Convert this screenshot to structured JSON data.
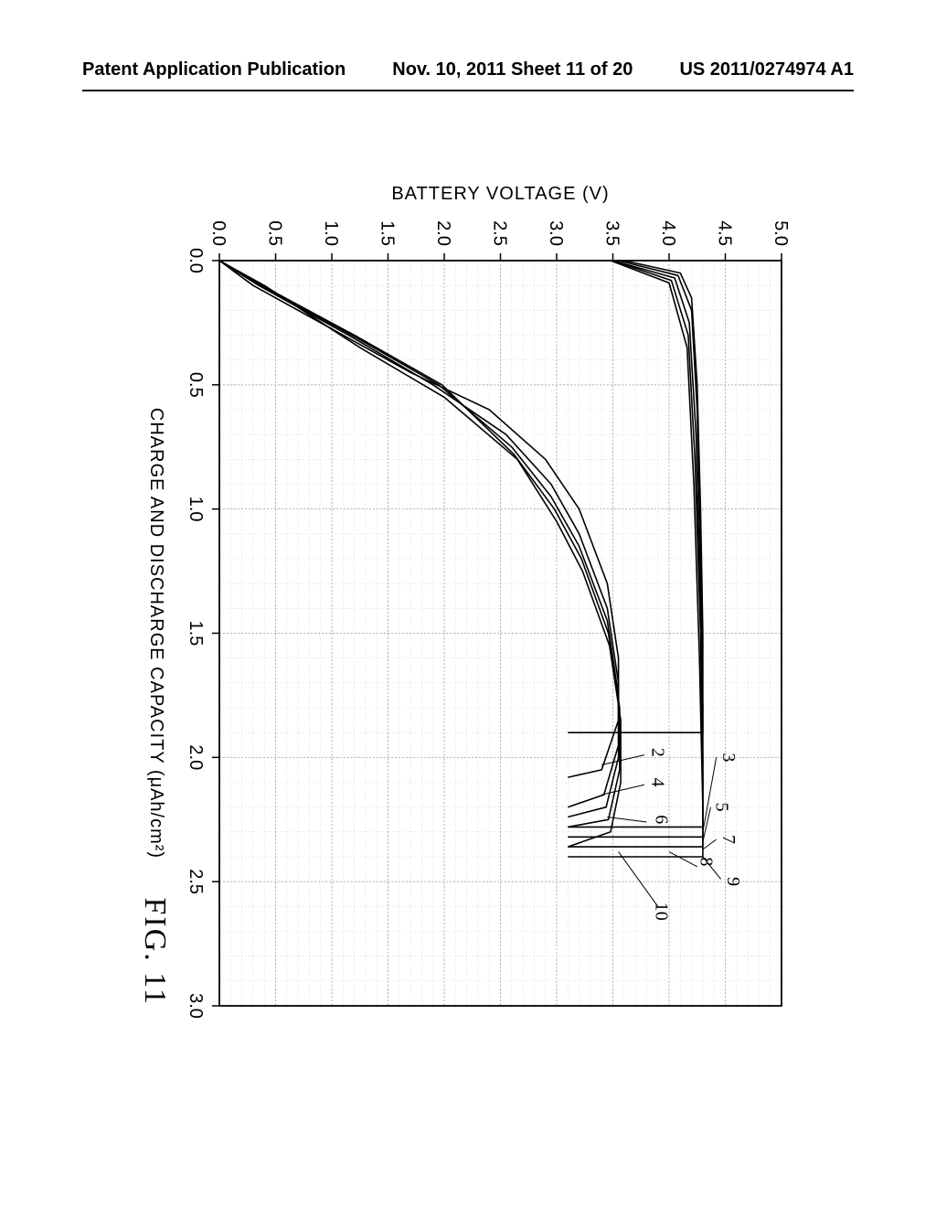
{
  "header": {
    "left": "Patent Application Publication",
    "center": "Nov. 10, 2011  Sheet 11 of 20",
    "right": "US 2011/0274974 A1"
  },
  "figure_caption": "FIG. 11",
  "chart": {
    "type": "line",
    "background_color": "#ffffff",
    "axis_color": "#000000",
    "grid_color_major": "#b5b5b5",
    "grid_color_minor": "#d9d9d9",
    "xlabel": "CHARGE AND DISCHARGE CAPACITY (μAh/cm²)",
    "ylabel": "BATTERY VOLTAGE (V)",
    "label_fontsize": 20,
    "tick_fontsize": 20,
    "xlim": [
      0.0,
      3.0
    ],
    "ylim": [
      0.0,
      5.0
    ],
    "x_major_step": 0.5,
    "y_major_step": 0.5,
    "x_minor_step": 0.1,
    "y_minor_step": 0.1,
    "charge_curves": {
      "comment": "top family plateauing near 4.2-4.3V",
      "color": "#000000",
      "line_width": 1.6,
      "series": [
        {
          "name": "1",
          "points": [
            [
              0.0,
              3.6
            ],
            [
              0.05,
              4.1
            ],
            [
              0.15,
              4.2
            ],
            [
              0.5,
              4.25
            ],
            [
              1.0,
              4.28
            ],
            [
              1.5,
              4.3
            ],
            [
              1.9,
              4.3
            ],
            [
              1.9,
              3.1
            ]
          ]
        },
        {
          "name": "3",
          "points": [
            [
              0.0,
              3.55
            ],
            [
              0.06,
              4.08
            ],
            [
              0.2,
              4.2
            ],
            [
              0.6,
              4.25
            ],
            [
              1.2,
              4.28
            ],
            [
              1.8,
              4.3
            ],
            [
              2.28,
              4.3
            ],
            [
              2.28,
              3.1
            ]
          ]
        },
        {
          "name": "5",
          "points": [
            [
              0.0,
              3.5
            ],
            [
              0.07,
              4.05
            ],
            [
              0.25,
              4.18
            ],
            [
              0.7,
              4.24
            ],
            [
              1.4,
              4.28
            ],
            [
              2.0,
              4.3
            ],
            [
              2.32,
              4.3
            ],
            [
              2.32,
              3.1
            ]
          ]
        },
        {
          "name": "7",
          "points": [
            [
              0.0,
              3.5
            ],
            [
              0.08,
              4.02
            ],
            [
              0.3,
              4.17
            ],
            [
              0.8,
              4.23
            ],
            [
              1.5,
              4.28
            ],
            [
              2.1,
              4.3
            ],
            [
              2.36,
              4.3
            ],
            [
              2.36,
              3.1
            ]
          ]
        },
        {
          "name": "9",
          "points": [
            [
              0.0,
              3.48
            ],
            [
              0.09,
              4.0
            ],
            [
              0.35,
              4.16
            ],
            [
              0.9,
              4.22
            ],
            [
              1.6,
              4.27
            ],
            [
              2.2,
              4.3
            ],
            [
              2.4,
              4.3
            ],
            [
              2.4,
              3.1
            ]
          ]
        }
      ]
    },
    "discharge_curves": {
      "comment": "lower family, rising then falling off",
      "color": "#000000",
      "line_width": 1.6,
      "series": [
        {
          "name": "2",
          "points": [
            [
              0.0,
              0.0
            ],
            [
              0.1,
              0.3
            ],
            [
              0.3,
              1.1
            ],
            [
              0.45,
              1.7
            ],
            [
              0.6,
              2.4
            ],
            [
              0.8,
              2.9
            ],
            [
              1.0,
              3.2
            ],
            [
              1.3,
              3.45
            ],
            [
              1.6,
              3.55
            ],
            [
              1.85,
              3.55
            ],
            [
              2.05,
              3.4
            ],
            [
              2.08,
              3.1
            ]
          ]
        },
        {
          "name": "4",
          "points": [
            [
              0.0,
              0.0
            ],
            [
              0.1,
              0.35
            ],
            [
              0.3,
              1.15
            ],
            [
              0.5,
              1.9
            ],
            [
              0.7,
              2.55
            ],
            [
              0.9,
              2.95
            ],
            [
              1.1,
              3.2
            ],
            [
              1.4,
              3.45
            ],
            [
              1.7,
              3.55
            ],
            [
              1.95,
              3.55
            ],
            [
              2.15,
              3.42
            ],
            [
              2.2,
              3.1
            ]
          ]
        },
        {
          "name": "6",
          "points": [
            [
              0.0,
              0.0
            ],
            [
              0.1,
              0.36
            ],
            [
              0.3,
              1.18
            ],
            [
              0.5,
              1.95
            ],
            [
              0.75,
              2.6
            ],
            [
              0.95,
              2.95
            ],
            [
              1.15,
              3.2
            ],
            [
              1.45,
              3.45
            ],
            [
              1.75,
              3.55
            ],
            [
              2.0,
              3.55
            ],
            [
              2.2,
              3.44
            ],
            [
              2.24,
              3.1
            ]
          ]
        },
        {
          "name": "8",
          "points": [
            [
              0.0,
              0.0
            ],
            [
              0.1,
              0.38
            ],
            [
              0.3,
              1.2
            ],
            [
              0.5,
              1.98
            ],
            [
              0.78,
              2.62
            ],
            [
              1.0,
              2.98
            ],
            [
              1.2,
              3.22
            ],
            [
              1.5,
              3.46
            ],
            [
              1.8,
              3.56
            ],
            [
              2.05,
              3.56
            ],
            [
              2.25,
              3.46
            ],
            [
              2.28,
              3.1
            ]
          ]
        },
        {
          "name": "10",
          "points": [
            [
              0.0,
              0.0
            ],
            [
              0.1,
              0.4
            ],
            [
              0.35,
              1.25
            ],
            [
              0.55,
              2.0
            ],
            [
              0.8,
              2.65
            ],
            [
              1.05,
              3.0
            ],
            [
              1.25,
              3.23
            ],
            [
              1.55,
              3.47
            ],
            [
              1.85,
              3.57
            ],
            [
              2.1,
              3.57
            ],
            [
              2.3,
              3.48
            ],
            [
              2.36,
              3.1
            ]
          ]
        }
      ]
    },
    "curve_number_labels": [
      {
        "text": "2",
        "x": 1.98,
        "y": 3.85
      },
      {
        "text": "3",
        "x": 2.0,
        "y": 4.48
      },
      {
        "text": "4",
        "x": 2.1,
        "y": 3.85
      },
      {
        "text": "5",
        "x": 2.2,
        "y": 4.42
      },
      {
        "text": "6",
        "x": 2.25,
        "y": 3.88
      },
      {
        "text": "7",
        "x": 2.33,
        "y": 4.48
      },
      {
        "text": "8",
        "x": 2.42,
        "y": 4.28
      },
      {
        "text": "9",
        "x": 2.5,
        "y": 4.52
      },
      {
        "text": "10",
        "x": 2.62,
        "y": 3.88
      }
    ],
    "label_leader_lines": [
      {
        "from": [
          2.0,
          4.42
        ],
        "to": [
          2.3,
          4.3
        ]
      },
      {
        "from": [
          2.2,
          4.37
        ],
        "to": [
          2.34,
          4.3
        ]
      },
      {
        "from": [
          2.33,
          4.42
        ],
        "to": [
          2.37,
          4.3
        ]
      },
      {
        "from": [
          2.44,
          4.25
        ],
        "to": [
          2.38,
          4.0
        ]
      },
      {
        "from": [
          2.49,
          4.46
        ],
        "to": [
          2.4,
          4.3
        ]
      },
      {
        "from": [
          2.6,
          3.9
        ],
        "to": [
          2.38,
          3.55
        ]
      },
      {
        "from": [
          1.99,
          3.78
        ],
        "to": [
          2.03,
          3.4
        ]
      },
      {
        "from": [
          2.11,
          3.78
        ],
        "to": [
          2.15,
          3.4
        ]
      },
      {
        "from": [
          2.26,
          3.8
        ],
        "to": [
          2.24,
          3.45
        ]
      }
    ]
  }
}
